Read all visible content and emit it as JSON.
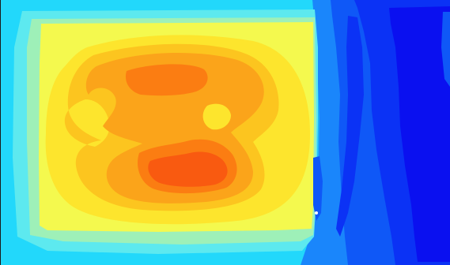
{
  "view": {
    "kind": "contour-field",
    "legend": "none",
    "labels": "none"
  },
  "palette": {
    "level_0": "#0a10f0",
    "level_1": "#0b32f5",
    "level_2": "#0f58f7",
    "level_3": "#1a86fb",
    "level_4": "#1fb4fc",
    "level_5": "#22d8fb",
    "level_6": "#5de9ef",
    "level_7": "#9ef0b8",
    "level_8": "#f4f94e",
    "level_9": "#fde52d",
    "level_10": "#fcc51f",
    "level_11": "#fba41a",
    "level_12": "#fb7d12",
    "level_13": "#f95a10",
    "edge": "#1a1a1a",
    "hotspot": "#ffffff"
  }
}
